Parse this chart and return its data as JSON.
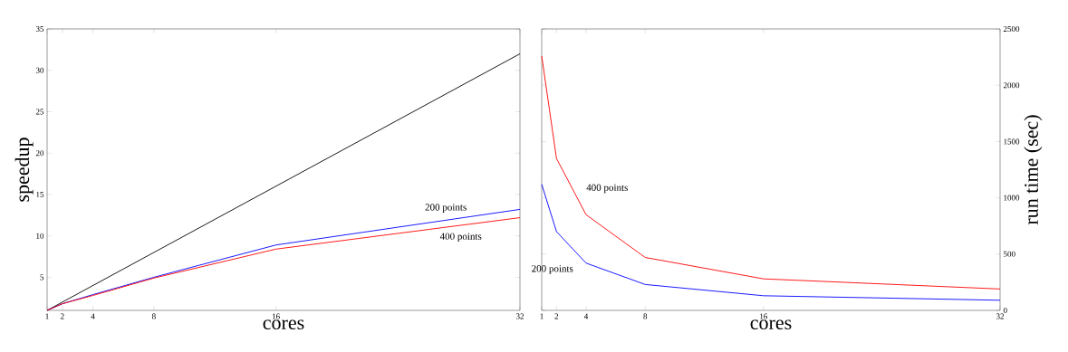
{
  "chart_data": [
    {
      "type": "line",
      "xlabel": "cores",
      "ylabel": "speedup",
      "xlim": [
        1,
        32
      ],
      "xticks": [
        1,
        2,
        4,
        8,
        16,
        32
      ],
      "ylim": [
        1,
        35
      ],
      "yticks": [
        5,
        10,
        15,
        20,
        25,
        30,
        35
      ],
      "series": [
        {
          "color": "#000000",
          "x": [
            1,
            32
          ],
          "values": [
            1,
            32
          ]
        },
        {
          "name": "200 points",
          "color": "#0000ff",
          "x": [
            1,
            2,
            4,
            8,
            16,
            32
          ],
          "values": [
            1,
            1.8,
            2.9,
            5,
            8.9,
            13.2
          ]
        },
        {
          "name": "400 points",
          "color": "#ff0000",
          "x": [
            1,
            2,
            4,
            8,
            16,
            32
          ],
          "values": [
            1,
            1.8,
            2.8,
            4.9,
            8.4,
            12.2
          ]
        }
      ]
    },
    {
      "type": "line",
      "xlabel": "cores",
      "ylabel": "run time (sec)",
      "xlim": [
        1,
        32
      ],
      "xticks": [
        1,
        2,
        4,
        8,
        16,
        32
      ],
      "ylim": [
        0,
        2500
      ],
      "yticks": [
        0,
        500,
        1000,
        1500,
        2000,
        2500
      ],
      "series": [
        {
          "name": "400 points",
          "color": "#ff0000",
          "x": [
            1,
            2,
            4,
            8,
            16,
            32
          ],
          "values": [
            2260,
            1350,
            850,
            470,
            280,
            190
          ]
        },
        {
          "name": "200 points",
          "color": "#0000ff",
          "x": [
            1,
            2,
            4,
            8,
            16,
            32
          ],
          "values": [
            1120,
            700,
            420,
            230,
            130,
            90
          ]
        }
      ]
    }
  ]
}
